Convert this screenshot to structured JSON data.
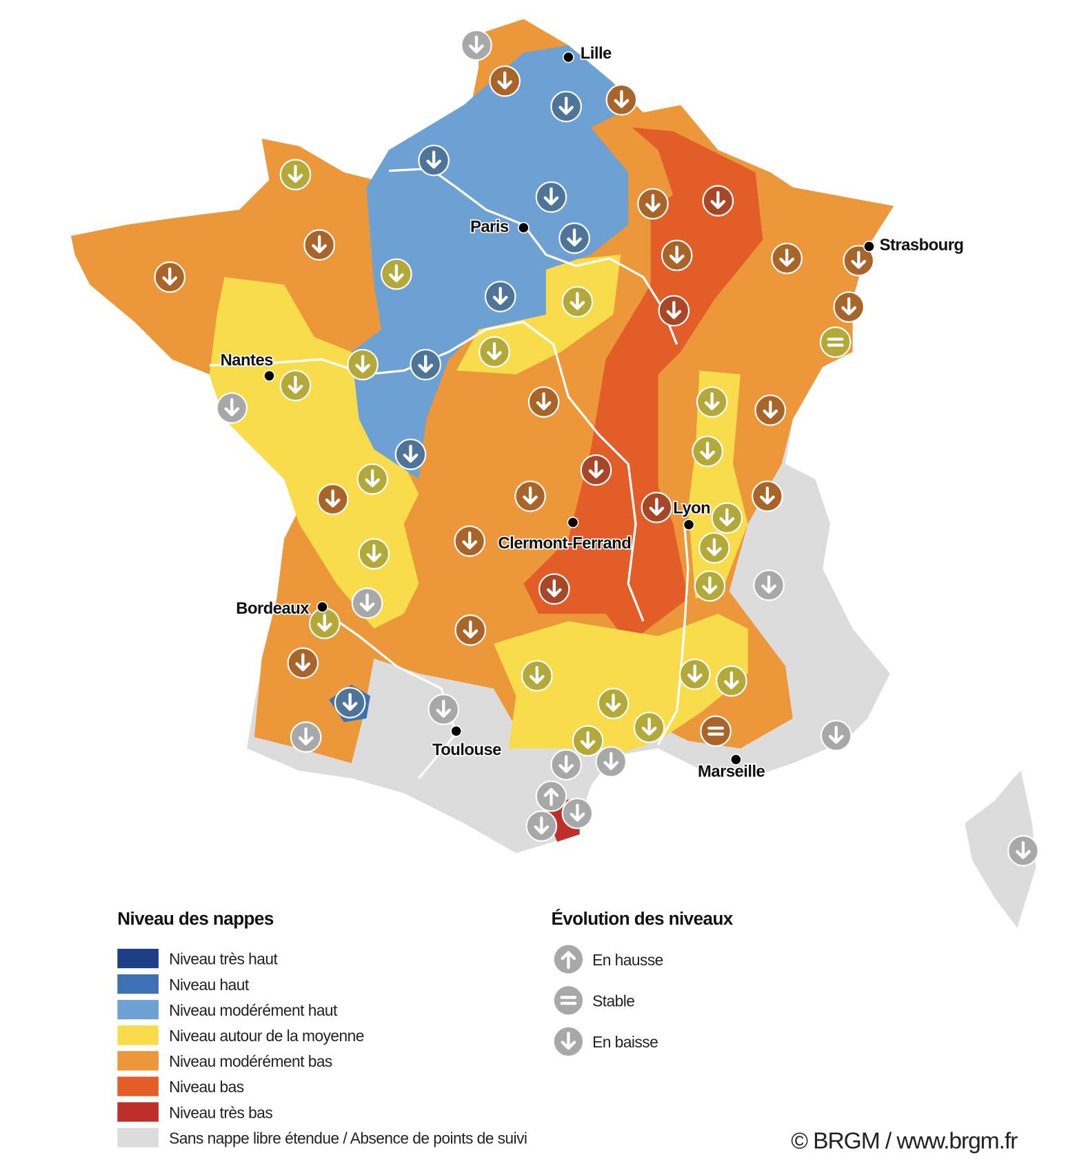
{
  "map": {
    "cities": [
      {
        "name": "Lille"
      },
      {
        "name": "Paris"
      },
      {
        "name": "Strasbourg"
      },
      {
        "name": "Nantes"
      },
      {
        "name": "Lyon"
      },
      {
        "name": "Clermont-Ferrand"
      },
      {
        "name": "Bordeaux"
      },
      {
        "name": "Toulouse"
      },
      {
        "name": "Marseille"
      }
    ]
  },
  "legend": {
    "levels": {
      "title": "Niveau des nappes",
      "items": [
        {
          "label": "Niveau très haut",
          "color": "#1d3f86"
        },
        {
          "label": "Niveau haut",
          "color": "#3d71b3"
        },
        {
          "label": "Niveau modérément haut",
          "color": "#6da1d4"
        },
        {
          "label": "Niveau autour de la moyenne",
          "color": "#f8dc4b"
        },
        {
          "label": "Niveau modérément bas",
          "color": "#ec973a"
        },
        {
          "label": "Niveau bas",
          "color": "#e35d29"
        },
        {
          "label": "Niveau très bas",
          "color": "#bf2e28"
        },
        {
          "label": "Sans nappe libre étendue / Absence de points de suivi",
          "color": "#dcdcdc"
        }
      ]
    },
    "trend": {
      "title": "Évolution des niveaux",
      "items": [
        {
          "label": "En hausse"
        },
        {
          "label": "Stable"
        },
        {
          "label": "En baisse"
        }
      ]
    }
  },
  "credit": "© BRGM / www.brgm.fr"
}
